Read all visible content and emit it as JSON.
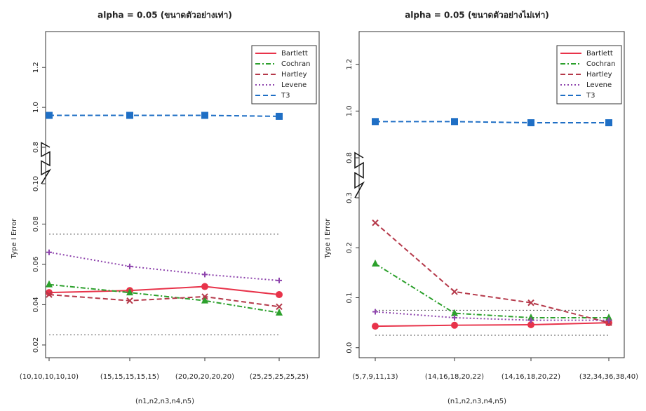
{
  "chart_data": [
    {
      "type": "line",
      "title": "alpha = 0.05 (ขนาดตัวอย่างเท่า)",
      "y_label": "Type I Error",
      "x_label": "(n1,n2,n3,n4,n5)",
      "categories": [
        "(10,10,10,10,10)",
        "(15,15,15,15,15)",
        "(20,20,20,20,20)",
        "(25,25,25,25,25)"
      ],
      "ylim": [
        0.0137,
        1.38
      ],
      "y_break": [
        0.1,
        0.8
      ],
      "yticks": [
        0.02,
        0.04,
        0.06,
        0.08,
        {
          "value": 0.1,
          "label": "0.10"
        },
        0.8,
        {
          "value": 1,
          "label": "1.0"
        },
        1.2
      ],
      "reference_lines": [
        0.025,
        0.075
      ],
      "legend": "top-right",
      "series": [
        {
          "name": "Bartlett",
          "color": "#e8334a",
          "marker": "circle",
          "dash": "solid",
          "values": [
            0.046,
            0.047,
            0.049,
            0.045
          ]
        },
        {
          "name": "Cochran",
          "color": "#2ca02c",
          "marker": "triangle",
          "dash": "dashdot",
          "values": [
            0.05,
            0.046,
            0.042,
            0.036
          ]
        },
        {
          "name": "Hartley",
          "color": "#b5394a",
          "marker": "x",
          "dash": "dashed",
          "values": [
            0.045,
            0.042,
            0.044,
            0.039
          ]
        },
        {
          "name": "Levene",
          "color": "#8e44ad",
          "marker": "plus",
          "dash": "dotted",
          "values": [
            0.066,
            0.059,
            0.055,
            0.052
          ]
        },
        {
          "name": "T3",
          "color": "#1f6fc5",
          "marker": "square",
          "dash": "dashed",
          "values": [
            0.96,
            0.96,
            0.96,
            0.955
          ]
        }
      ]
    },
    {
      "type": "line",
      "title": "alpha = 0.05 (ขนาดตัวอย่างไม่เท่า)",
      "y_label": "Type I Error",
      "x_label": "(n1,n2,n3,n4,n5)",
      "categories": [
        "(5,7,9,11,13)",
        "(14,16,18,20,22)",
        "(14,16,18,20,22)",
        "(32,34,36,38,40)"
      ],
      "ylim": [
        -0.02,
        1.34
      ],
      "y_break": [
        0.3,
        0.8
      ],
      "yticks": [
        {
          "value": 0,
          "label": "0.0"
        },
        0.1,
        0.2,
        0.3,
        0.8,
        {
          "value": 1,
          "label": "1.0"
        },
        1.2
      ],
      "reference_lines": [
        0.025,
        0.075
      ],
      "legend": "top-right",
      "series": [
        {
          "name": "Bartlett",
          "color": "#e8334a",
          "marker": "circle",
          "dash": "solid",
          "values": [
            0.043,
            0.045,
            0.046,
            0.05
          ]
        },
        {
          "name": "Cochran",
          "color": "#2ca02c",
          "marker": "triangle",
          "dash": "dashdot",
          "values": [
            0.168,
            0.069,
            0.06,
            0.06
          ]
        },
        {
          "name": "Hartley",
          "color": "#b5394a",
          "marker": "x",
          "dash": "dashed",
          "values": [
            0.25,
            0.112,
            0.09,
            0.05
          ]
        },
        {
          "name": "Levene",
          "color": "#8e44ad",
          "marker": "plus",
          "dash": "dotted",
          "values": [
            0.072,
            0.06,
            0.055,
            0.055
          ]
        },
        {
          "name": "T3",
          "color": "#1f6fc5",
          "marker": "square",
          "dash": "dashed",
          "values": [
            0.955,
            0.955,
            0.95,
            0.95
          ]
        }
      ]
    }
  ]
}
